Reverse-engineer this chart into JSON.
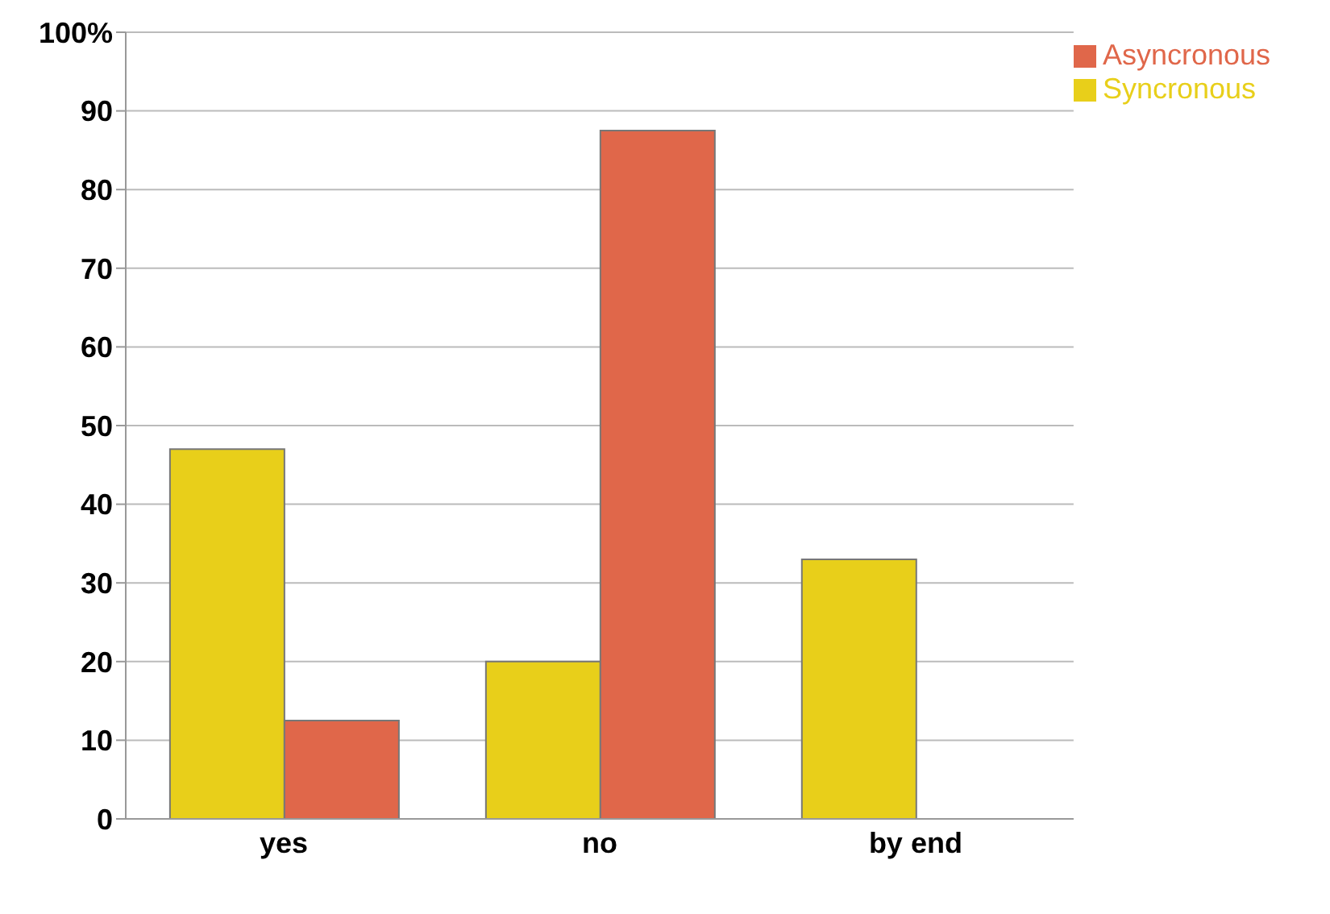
{
  "chart_data": {
    "type": "bar",
    "categories": [
      "yes",
      "no",
      "by end"
    ],
    "series": [
      {
        "name": "Syncronous",
        "color": "#e8cf1a",
        "values": [
          47,
          20,
          33
        ]
      },
      {
        "name": "Asyncronous",
        "color": "#e0674a",
        "values": [
          12.5,
          87.5,
          0
        ]
      }
    ],
    "ylim": [
      0,
      100
    ],
    "yticks": [
      0,
      10,
      20,
      30,
      40,
      50,
      60,
      70,
      80,
      90,
      {
        "value": 100,
        "label": "100%"
      }
    ],
    "grid": "y",
    "legend": "top right"
  }
}
